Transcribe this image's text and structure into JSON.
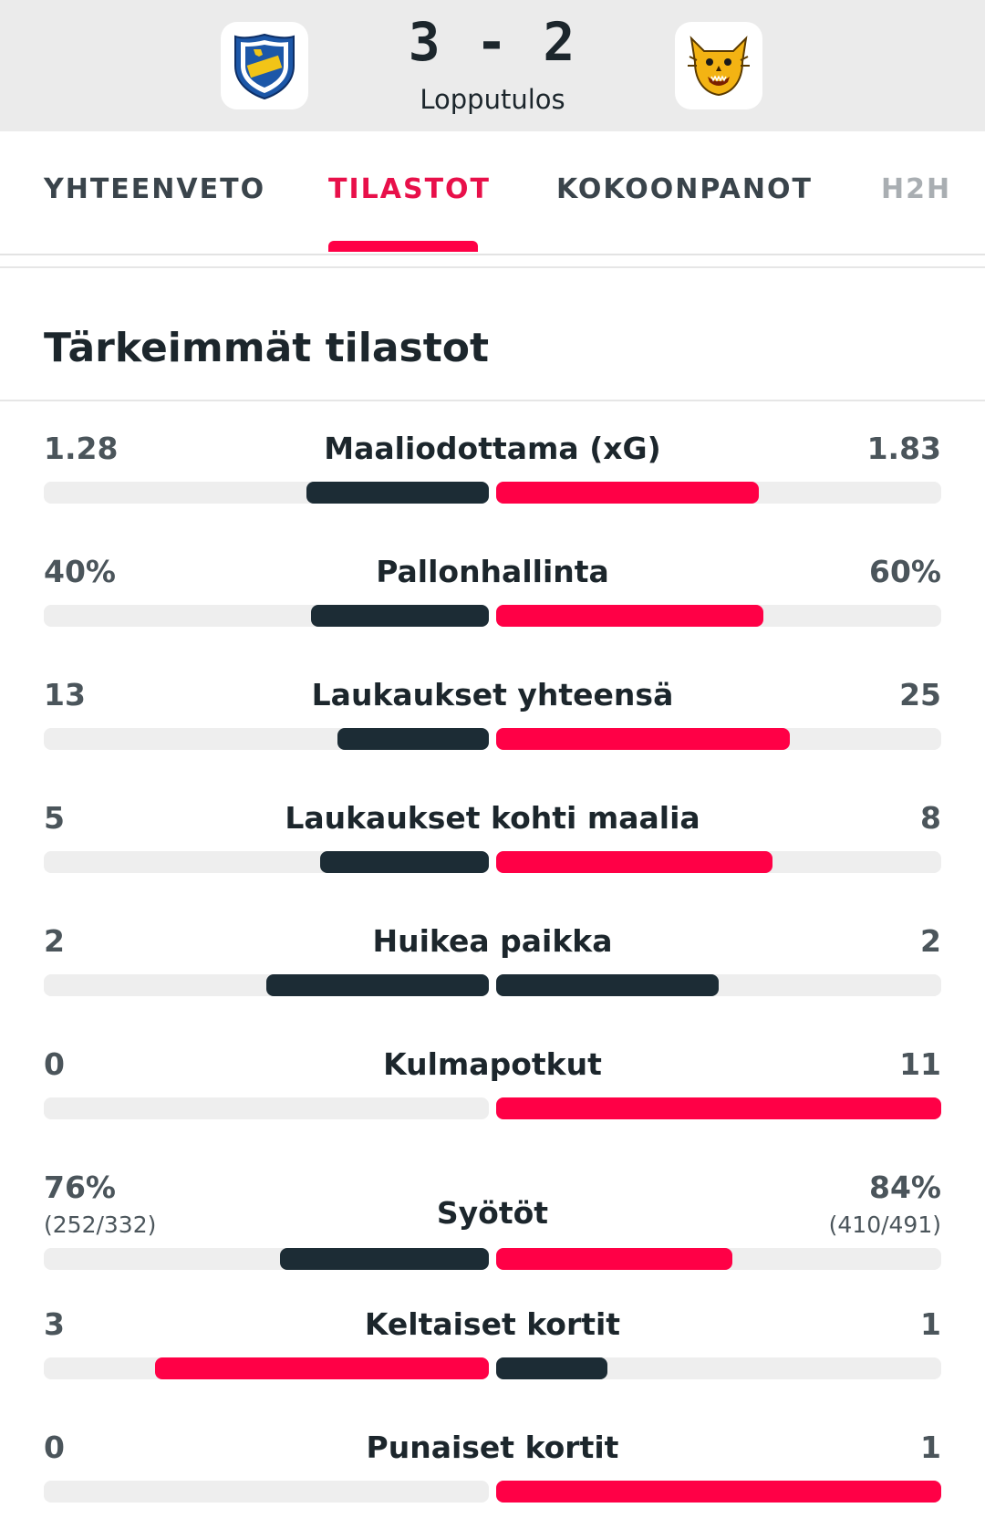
{
  "header": {
    "score": "3 - 2",
    "status": "Lopputulos",
    "home_logo_icon": "ifk-mariehamn-crest-icon",
    "away_logo_icon": "ilves-lynx-crest-icon"
  },
  "tabs": [
    {
      "label": "YHTEENVETO",
      "active": false
    },
    {
      "label": "TILASTOT",
      "active": true
    },
    {
      "label": "KOKOONPANOT",
      "active": false
    },
    {
      "label": "H2H",
      "active": false
    }
  ],
  "section": {
    "title": "Tärkeimmät tilastot"
  },
  "colors": {
    "leader": "#ff0046",
    "other": "#1c2c35",
    "track": "#eeeeee",
    "accent_text": "#e8104a"
  },
  "stats": [
    {
      "label": "Maaliodottama (xG)",
      "home": "1.28",
      "away": "1.83",
      "home_fill": 0.41,
      "away_fill": 0.59,
      "home_color": "other",
      "away_color": "leader"
    },
    {
      "label": "Pallonhallinta",
      "home": "40%",
      "away": "60%",
      "home_fill": 0.4,
      "away_fill": 0.6,
      "home_color": "other",
      "away_color": "leader"
    },
    {
      "label": "Laukaukset yhteensä",
      "home": "13",
      "away": "25",
      "home_fill": 0.34,
      "away_fill": 0.66,
      "home_color": "other",
      "away_color": "leader"
    },
    {
      "label": "Laukaukset kohti maalia",
      "home": "5",
      "away": "8",
      "home_fill": 0.38,
      "away_fill": 0.62,
      "home_color": "other",
      "away_color": "leader"
    },
    {
      "label": "Huikea paikka",
      "home": "2",
      "away": "2",
      "home_fill": 0.5,
      "away_fill": 0.5,
      "home_color": "other",
      "away_color": "other"
    },
    {
      "label": "Kulmapotkut",
      "home": "0",
      "away": "11",
      "home_fill": 0.0,
      "away_fill": 1.0,
      "home_color": "other",
      "away_color": "leader"
    },
    {
      "label": "Syötöt",
      "home": "76%",
      "away": "84%",
      "home_sub": "(252/332)",
      "away_sub": "(410/491)",
      "home_fill": 0.47,
      "away_fill": 0.53,
      "home_color": "other",
      "away_color": "leader"
    },
    {
      "label": "Keltaiset kortit",
      "home": "3",
      "away": "1",
      "home_fill": 0.75,
      "away_fill": 0.25,
      "home_color": "leader",
      "away_color": "other"
    },
    {
      "label": "Punaiset kortit",
      "home": "0",
      "away": "1",
      "home_fill": 0.0,
      "away_fill": 1.0,
      "home_color": "other",
      "away_color": "leader"
    }
  ]
}
